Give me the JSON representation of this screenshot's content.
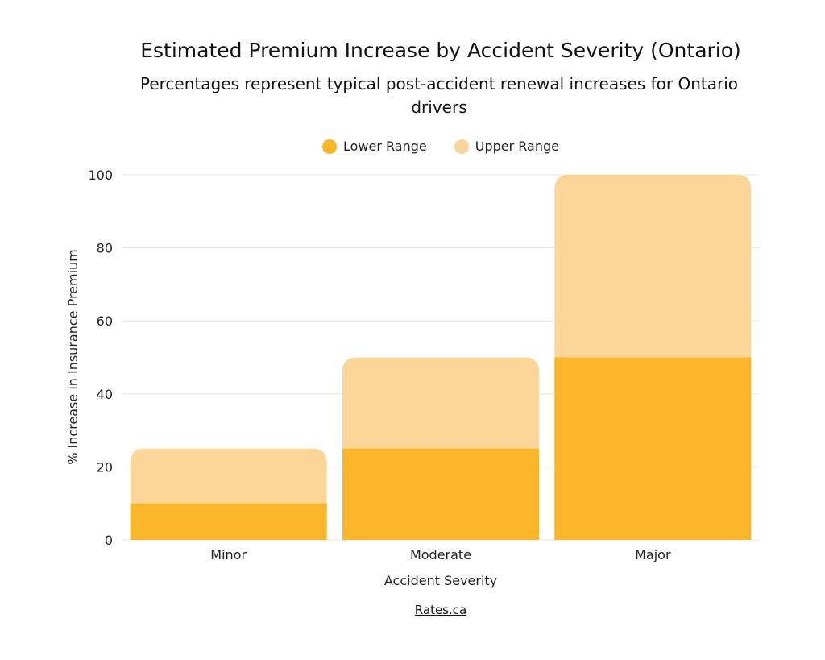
{
  "chart_data": {
    "type": "bar",
    "title": "Estimated Premium Increase by Accident Severity (Ontario)",
    "subtitle": "Percentages represent typical post-accident renewal increases for Ontario drivers",
    "xlabel": "Accident Severity",
    "ylabel": "% Increase in Insurance Premium",
    "categories": [
      "Minor",
      "Moderate",
      "Major"
    ],
    "series": [
      {
        "name": "Lower Range",
        "values": [
          10,
          25,
          50
        ],
        "color": "#FBB52B"
      },
      {
        "name": "Upper Range",
        "values": [
          25,
          50,
          100
        ],
        "color": "#FCD699"
      }
    ],
    "ylim": [
      0,
      100
    ],
    "yticks": [
      0,
      20,
      40,
      60,
      80,
      100
    ],
    "grid": true,
    "legend_position": "top"
  },
  "source": "Rates.ca"
}
